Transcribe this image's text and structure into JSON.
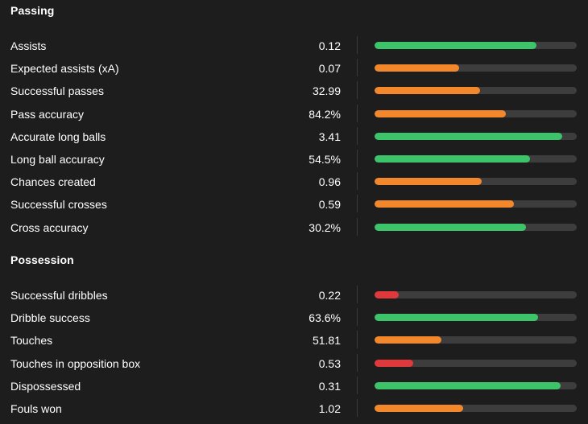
{
  "colors": {
    "green": "#3dc46a",
    "orange": "#f2872c",
    "red": "#e0393c",
    "track": "#3d3d3d"
  },
  "sections": [
    {
      "title": "Passing",
      "stats": [
        {
          "label": "Assists",
          "value": "0.12",
          "level": 0.8,
          "color": "green"
        },
        {
          "label": "Expected assists (xA)",
          "value": "0.07",
          "level": 0.42,
          "color": "orange"
        },
        {
          "label": "Successful passes",
          "value": "32.99",
          "level": 0.52,
          "color": "orange"
        },
        {
          "label": "Pass accuracy",
          "value": "84.2%",
          "level": 0.65,
          "color": "orange"
        },
        {
          "label": "Accurate long balls",
          "value": "3.41",
          "level": 0.93,
          "color": "green"
        },
        {
          "label": "Long ball accuracy",
          "value": "54.5%",
          "level": 0.77,
          "color": "green"
        },
        {
          "label": "Chances created",
          "value": "0.96",
          "level": 0.53,
          "color": "orange"
        },
        {
          "label": "Successful crosses",
          "value": "0.59",
          "level": 0.69,
          "color": "orange"
        },
        {
          "label": "Cross accuracy",
          "value": "30.2%",
          "level": 0.75,
          "color": "green"
        }
      ]
    },
    {
      "title": "Possession",
      "stats": [
        {
          "label": "Successful dribbles",
          "value": "0.22",
          "level": 0.12,
          "color": "red"
        },
        {
          "label": "Dribble success",
          "value": "63.6%",
          "level": 0.81,
          "color": "green"
        },
        {
          "label": "Touches",
          "value": "51.81",
          "level": 0.33,
          "color": "orange"
        },
        {
          "label": "Touches in opposition box",
          "value": "0.53",
          "level": 0.19,
          "color": "red"
        },
        {
          "label": "Dispossessed",
          "value": "0.31",
          "level": 0.92,
          "color": "green"
        },
        {
          "label": "Fouls won",
          "value": "1.02",
          "level": 0.44,
          "color": "orange"
        }
      ]
    }
  ]
}
